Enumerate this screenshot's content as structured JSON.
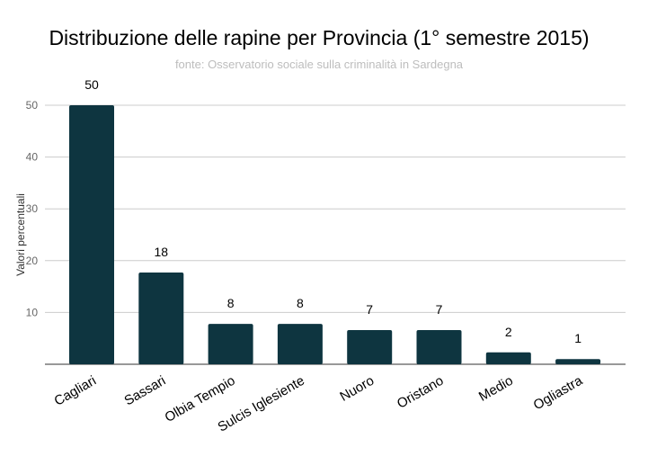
{
  "chart_data": {
    "type": "bar",
    "title": "Distribuzione delle rapine per Provincia (1° semestre 2015)",
    "subtitle": "fonte: Osservatorio sociale sulla criminalità in Sardegna",
    "xlabel": "",
    "ylabel": "Valori percentuali",
    "ylim": [
      0,
      50
    ],
    "yticks": [
      10,
      20,
      30,
      40,
      50
    ],
    "grid": true,
    "bar_color": "#0e3540",
    "categories": [
      "Cagliari",
      "Sassari",
      "Olbia Tempio",
      "Sulcis Iglesiente",
      "Nuoro",
      "Oristano",
      "Medio",
      "Ogliastra"
    ],
    "values": [
      50,
      17.7,
      7.8,
      7.8,
      6.6,
      6.6,
      2.3,
      1.0
    ],
    "data_labels": [
      "50",
      "18",
      "8",
      "8",
      "7",
      "7",
      "2",
      "1"
    ]
  }
}
